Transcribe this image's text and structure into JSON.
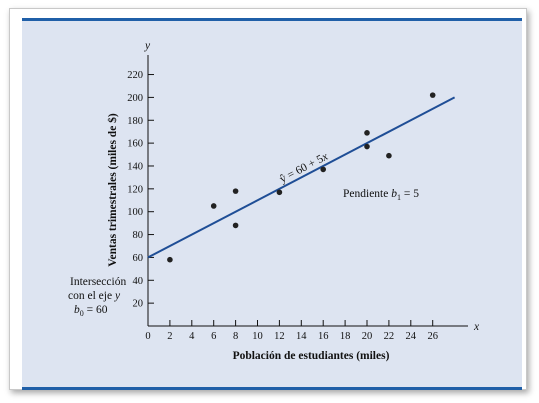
{
  "chart_data": {
    "type": "scatter",
    "xlabel": "Población de estudiantes (miles)",
    "ylabel": "Ventas trimestrales (miles de $)",
    "x_axis_symbol": "x",
    "y_axis_symbol": "y",
    "xlim": [
      0,
      28
    ],
    "ylim": [
      0,
      230
    ],
    "x_ticks": [
      0,
      2,
      4,
      6,
      8,
      10,
      12,
      14,
      16,
      18,
      20,
      22,
      24,
      26
    ],
    "y_ticks": [
      20,
      40,
      60,
      80,
      100,
      120,
      140,
      160,
      180,
      200,
      220
    ],
    "points": [
      {
        "x": 2,
        "y": 58
      },
      {
        "x": 6,
        "y": 105
      },
      {
        "x": 8,
        "y": 88
      },
      {
        "x": 8,
        "y": 118
      },
      {
        "x": 12,
        "y": 117
      },
      {
        "x": 16,
        "y": 137
      },
      {
        "x": 20,
        "y": 157
      },
      {
        "x": 20,
        "y": 169
      },
      {
        "x": 22,
        "y": 149
      },
      {
        "x": 26,
        "y": 202
      }
    ],
    "regression_line": {
      "intercept": 60,
      "slope": 5,
      "x_start": 0,
      "x_end": 28
    },
    "colors": {
      "line": "#1f4e96",
      "points": "#222222"
    },
    "annotations": {
      "equation": {
        "text_prefix": "ŷ = 60 + 5",
        "text_var": "x"
      },
      "slope": {
        "text_prefix": "Pendiente ",
        "text_var": "b",
        "text_sub": "1",
        "text_suffix": " = 5"
      },
      "intercept": {
        "line1": "Intersección",
        "line2_prefix": "con el eje ",
        "line2_var": "y",
        "line3_var": "b",
        "line3_sub": "0",
        "line3_suffix": " = 60"
      }
    }
  }
}
